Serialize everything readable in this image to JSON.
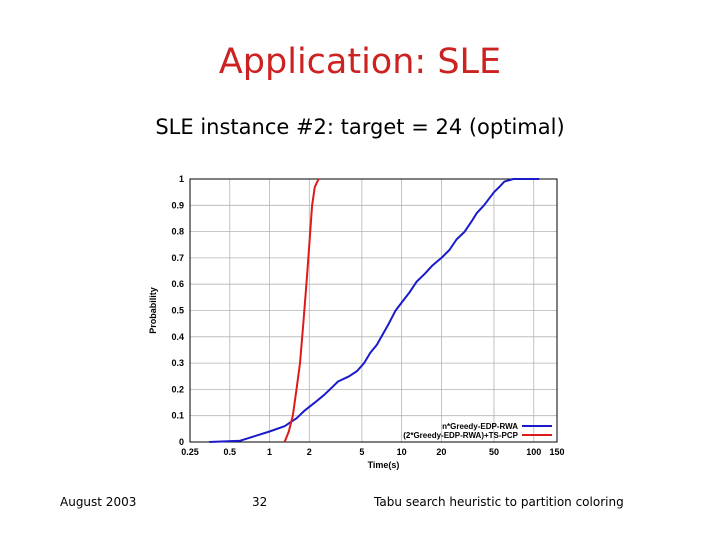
{
  "slide": {
    "title": "Application: SLE",
    "footer_left": "August 2003",
    "footer_page": "32",
    "footer_right": "Tabu search heuristic to partition coloring"
  },
  "colors": {
    "title": "#cc2222",
    "series_1": "#1a1acc",
    "series_2": "#dd1a1a",
    "grid": "#b4b4b4"
  },
  "chart_data": {
    "type": "line",
    "title": "SLE instance #2: target = 24 (optimal)",
    "xlabel": "Time(s)",
    "ylabel": "Probability",
    "xscale": "log",
    "xlim": [
      0.25,
      150
    ],
    "ylim": [
      0,
      1
    ],
    "x_ticks": [
      "0.25",
      "0.5",
      "1",
      "2",
      "5",
      "10",
      "20",
      "50",
      "100",
      "150"
    ],
    "x_tick_values": [
      0.25,
      0.5,
      1,
      2,
      5,
      10,
      20,
      50,
      100,
      150
    ],
    "y_ticks": [
      "0",
      "0.1",
      "0.2",
      "0.3",
      "0.4",
      "0.5",
      "0.6",
      "0.7",
      "0.8",
      "0.9",
      "1"
    ],
    "y_tick_values": [
      0,
      0.1,
      0.2,
      0.3,
      0.4,
      0.5,
      0.6,
      0.7,
      0.8,
      0.9,
      1
    ],
    "grid": true,
    "legend_position": "bottom-right",
    "series": [
      {
        "name": "n*Greedy-EDP-RWA",
        "points": [
          [
            0.35,
            0.0
          ],
          [
            0.6,
            0.005
          ],
          [
            0.75,
            0.02
          ],
          [
            1.0,
            0.04
          ],
          [
            1.3,
            0.06
          ],
          [
            1.6,
            0.09
          ],
          [
            1.85,
            0.12
          ],
          [
            2.2,
            0.15
          ],
          [
            2.6,
            0.18
          ],
          [
            3.0,
            0.21
          ],
          [
            3.3,
            0.23
          ],
          [
            4.0,
            0.25
          ],
          [
            4.6,
            0.27
          ],
          [
            5.2,
            0.3
          ],
          [
            5.8,
            0.34
          ],
          [
            6.5,
            0.37
          ],
          [
            7.2,
            0.41
          ],
          [
            8.0,
            0.45
          ],
          [
            9.0,
            0.5
          ],
          [
            10.0,
            0.53
          ],
          [
            11.5,
            0.57
          ],
          [
            13.0,
            0.61
          ],
          [
            15.0,
            0.64
          ],
          [
            17.0,
            0.67
          ],
          [
            20.0,
            0.7
          ],
          [
            23.0,
            0.73
          ],
          [
            26.0,
            0.77
          ],
          [
            30.0,
            0.8
          ],
          [
            34.0,
            0.84
          ],
          [
            37.0,
            0.87
          ],
          [
            42.0,
            0.9
          ],
          [
            50.0,
            0.95
          ],
          [
            55.0,
            0.97
          ],
          [
            60.0,
            0.99
          ],
          [
            70.0,
            1.0
          ],
          [
            100.0,
            1.0
          ],
          [
            110.0,
            1.0
          ]
        ]
      },
      {
        "name": "(2*Greedy-EDP-RWA)+TS-PCP",
        "points": [
          [
            1.3,
            0.0
          ],
          [
            1.4,
            0.04
          ],
          [
            1.5,
            0.1
          ],
          [
            1.6,
            0.2
          ],
          [
            1.7,
            0.3
          ],
          [
            1.8,
            0.45
          ],
          [
            1.9,
            0.6
          ],
          [
            2.0,
            0.75
          ],
          [
            2.1,
            0.9
          ],
          [
            2.2,
            0.97
          ],
          [
            2.35,
            1.0
          ]
        ]
      }
    ]
  }
}
